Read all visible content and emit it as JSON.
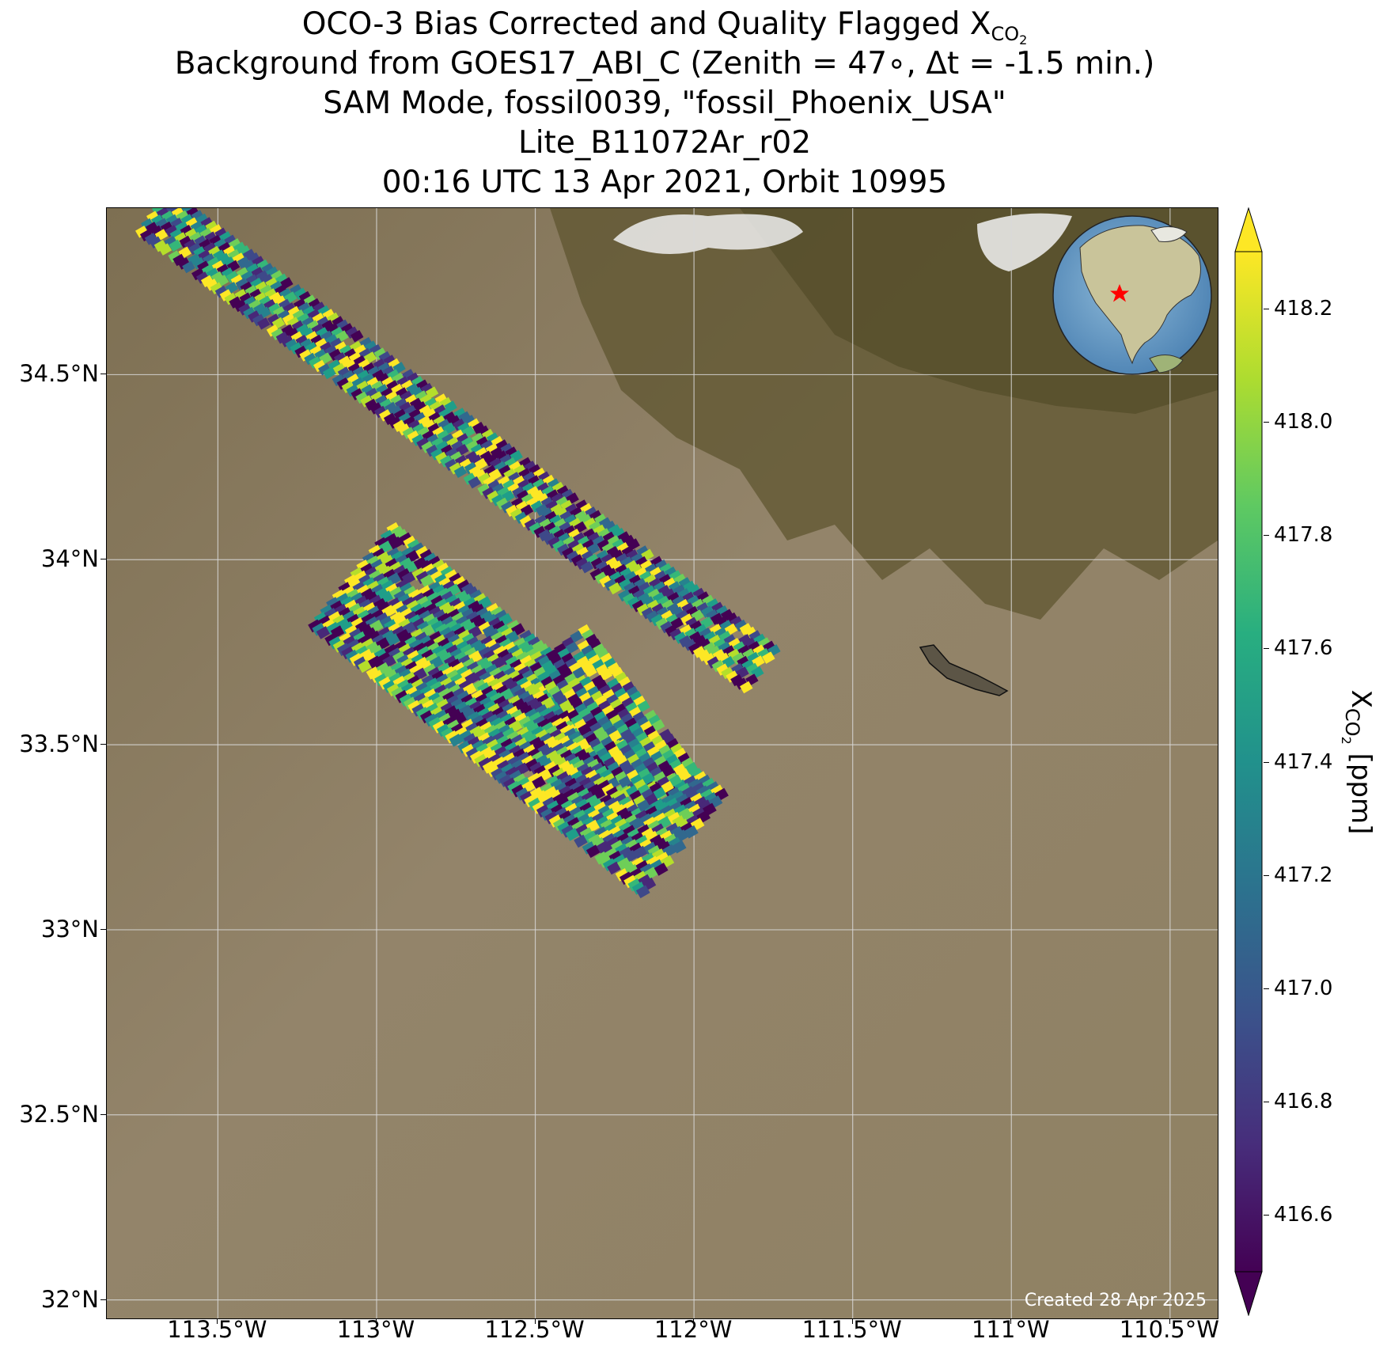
{
  "title": {
    "line1_prefix": "OCO-3 Bias Corrected and Quality Flagged X",
    "line1_sub": "CO",
    "line1_subsub": "2",
    "line2": "Background from GOES17_ABI_C (Zenith = 47∘, Δt = -1.5 min.)",
    "line3": "SAM Mode, fossil0039, \"fossil_Phoenix_USA\"",
    "line4": "Lite_B11072Ar_r02",
    "line5": "00:16 UTC 13 Apr 2021, Orbit 10995"
  },
  "credit": "Created 28 Apr 2025",
  "map": {
    "lon_range": [
      -113.85,
      -110.35
    ],
    "lat_range": [
      31.95,
      34.95
    ],
    "lon_ticks": [
      {
        "value": -113.5,
        "label": "113.5°W"
      },
      {
        "value": -113.0,
        "label": "113°W"
      },
      {
        "value": -112.5,
        "label": "112.5°W"
      },
      {
        "value": -112.0,
        "label": "112°W"
      },
      {
        "value": -111.5,
        "label": "111.5°W"
      },
      {
        "value": -111.0,
        "label": "111°W"
      },
      {
        "value": -110.5,
        "label": "110.5°W"
      }
    ],
    "lat_ticks": [
      {
        "value": 34.5,
        "label": "34.5°N"
      },
      {
        "value": 34.0,
        "label": "34°N"
      },
      {
        "value": 33.5,
        "label": "33.5°N"
      },
      {
        "value": 33.0,
        "label": "33°N"
      },
      {
        "value": 32.5,
        "label": "32.5°N"
      },
      {
        "value": 32.0,
        "label": "32°N"
      }
    ],
    "grid": true,
    "inset": "globe centered on North America with red star at target",
    "colors": {
      "background": "#8e7f62",
      "grid": "#d9d9d9",
      "target_star": "#ff0000"
    }
  },
  "colorbar": {
    "label_prefix": "X",
    "label_sub": "CO",
    "label_subsub": "2",
    "label_suffix": " [ppm]",
    "vmin": 416.5,
    "vmax": 418.3,
    "colormap": "viridis",
    "extend": "both",
    "ticks": [
      {
        "value": 416.6,
        "label": "416.6"
      },
      {
        "value": 416.8,
        "label": "416.8"
      },
      {
        "value": 417.0,
        "label": "417.0"
      },
      {
        "value": 417.2,
        "label": "417.2"
      },
      {
        "value": 417.4,
        "label": "417.4"
      },
      {
        "value": 417.6,
        "label": "417.6"
      },
      {
        "value": 417.8,
        "label": "417.8"
      },
      {
        "value": 418.0,
        "label": "418.0"
      },
      {
        "value": 418.2,
        "label": "418.2"
      }
    ]
  }
}
